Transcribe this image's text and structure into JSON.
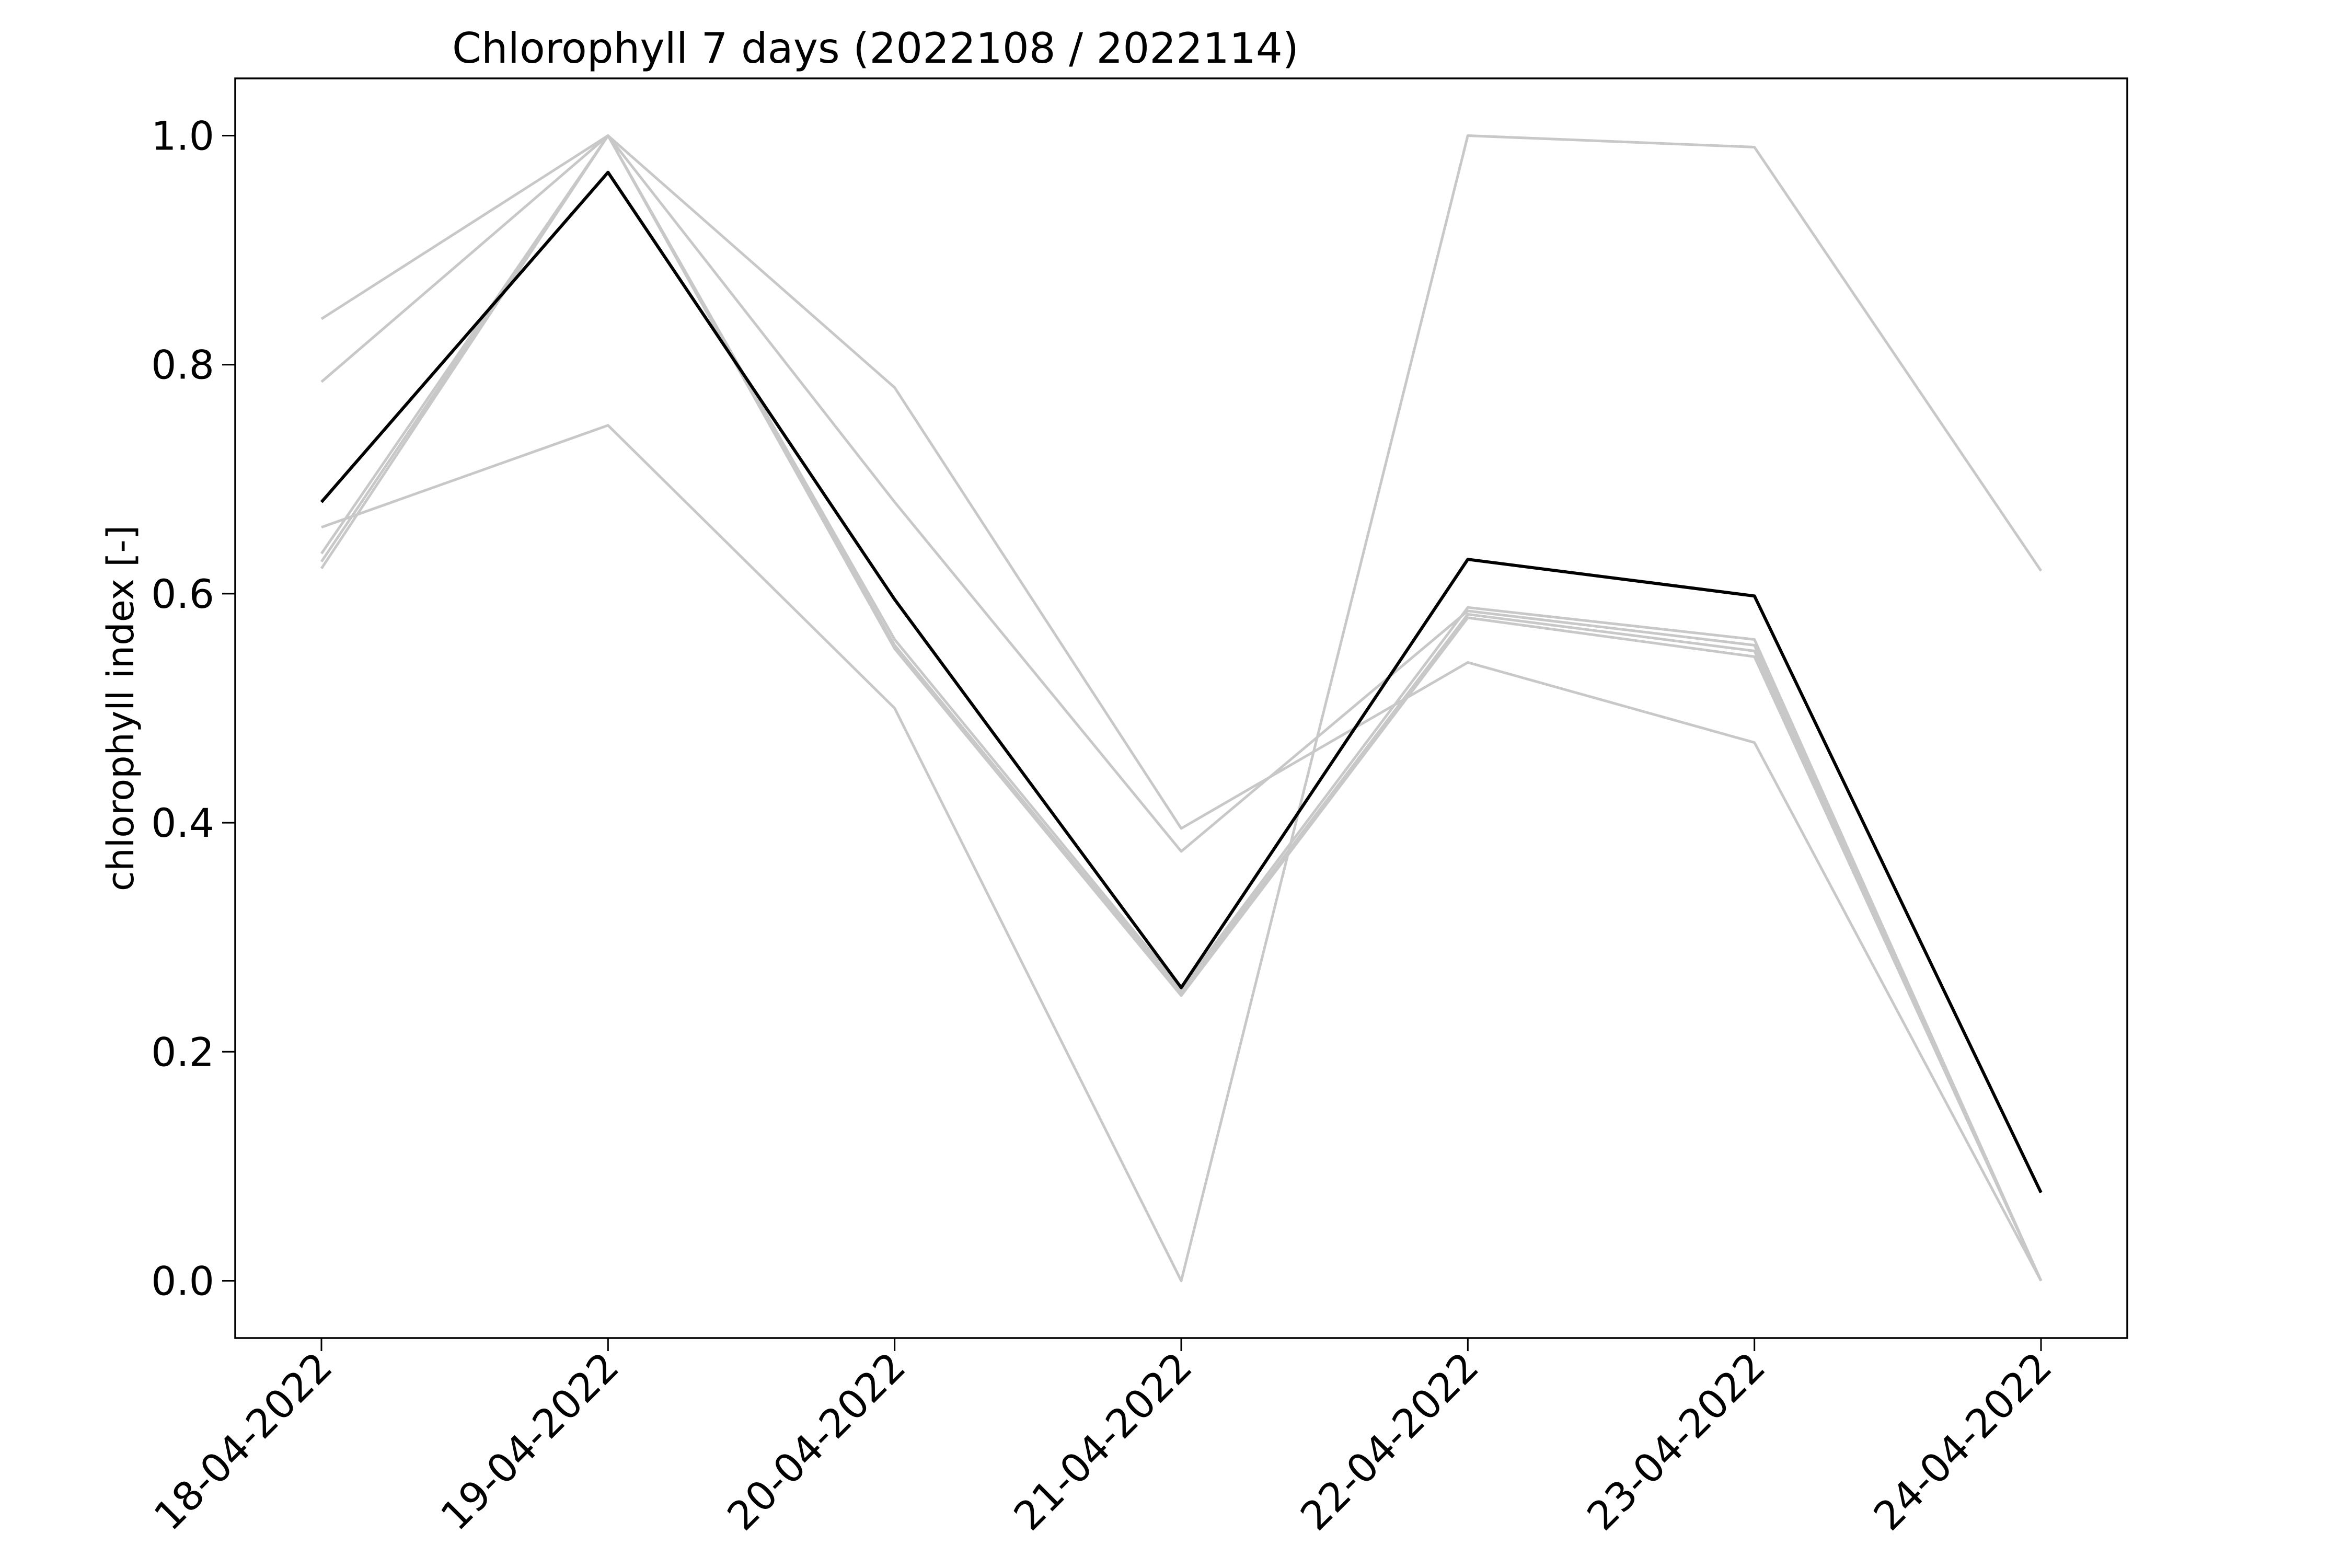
{
  "chart_data": {
    "type": "line",
    "title": "Chlorophyll 7 days (2022108 / 2022114)",
    "xlabel": "",
    "ylabel": "chlorophyll index [-]",
    "categories": [
      "18-04-2022",
      "19-04-2022",
      "20-04-2022",
      "21-04-2022",
      "22-04-2022",
      "23-04-2022",
      "24-04-2022"
    ],
    "ylim": [
      -0.05,
      1.05
    ],
    "yticks": [
      0.0,
      0.2,
      0.4,
      0.6,
      0.8,
      1.0
    ],
    "ytick_labels": [
      "0.0",
      "0.2",
      "0.4",
      "0.6",
      "0.8",
      "1.0"
    ],
    "grid": false,
    "series": [
      {
        "color": "#c8c8c8",
        "values": [
          0.84,
          1.0,
          0.68,
          0.375,
          0.585,
          0.555,
          0.0
        ]
      },
      {
        "color": "#c8c8c8",
        "values": [
          0.785,
          1.0,
          0.78,
          0.395,
          0.54,
          0.47,
          0.0
        ]
      },
      {
        "color": "#c8c8c8",
        "values": [
          0.658,
          0.747,
          0.5,
          0.0,
          1.0,
          0.99,
          0.62
        ]
      },
      {
        "color": "#c8c8c8",
        "values": [
          0.635,
          1.0,
          0.56,
          0.255,
          0.588,
          0.56,
          0.0
        ]
      },
      {
        "color": "#c8c8c8",
        "values": [
          0.628,
          1.0,
          0.555,
          0.252,
          0.582,
          0.55,
          0.0
        ]
      },
      {
        "color": "#c8c8c8",
        "values": [
          0.622,
          1.0,
          0.552,
          0.249,
          0.579,
          0.545,
          0.0
        ]
      },
      {
        "color": "#000000",
        "values": [
          0.68,
          0.968,
          0.595,
          0.256,
          0.63,
          0.598,
          0.077
        ]
      }
    ]
  }
}
